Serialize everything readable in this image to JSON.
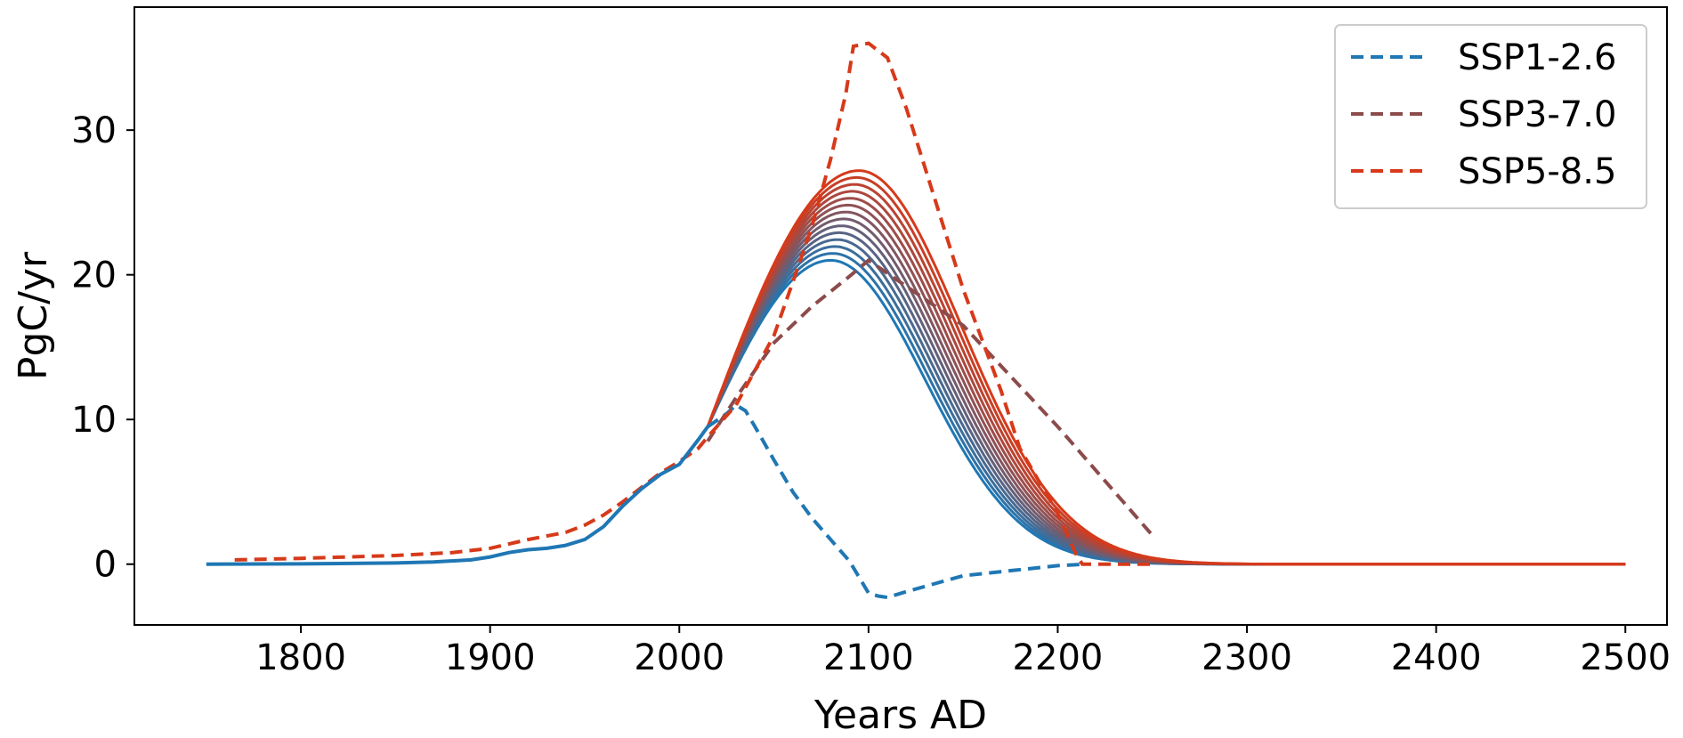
{
  "chart_data": {
    "type": "line",
    "title": "",
    "xlabel": "Years AD",
    "ylabel": "PgC/yr",
    "xlim": [
      1712,
      2522
    ],
    "ylim": [
      -4.2,
      38.5
    ],
    "xticks": [
      1800,
      1900,
      2000,
      2100,
      2200,
      2300,
      2400,
      2500
    ],
    "yticks": [
      0,
      10,
      20,
      30
    ],
    "grid": false,
    "legend_position": "top-right",
    "colors": {
      "ssp126": "#1f77b4",
      "ssp370": "#8c4b4b",
      "ssp585": "#d63a1a",
      "family_start": "#1f77b4",
      "family_end": "#d63a1a"
    },
    "series": [
      {
        "name": "SSP1-2.6",
        "style": "dashed",
        "x": [
          2015,
          2025,
          2030,
          2035,
          2040,
          2050,
          2060,
          2070,
          2080,
          2090,
          2100,
          2105,
          2110,
          2120,
          2150,
          2200,
          2215
        ],
        "y": [
          9.5,
          10.4,
          11.0,
          10.6,
          9.5,
          7.2,
          5.0,
          3.2,
          1.7,
          0.2,
          -2.0,
          -2.2,
          -2.3,
          -1.9,
          -0.8,
          -0.1,
          0.0
        ]
      },
      {
        "name": "SSP3-7.0",
        "style": "dashed",
        "x": [
          2015,
          2030,
          2050,
          2070,
          2090,
          2100,
          2150,
          2200,
          2250
        ],
        "y": [
          8.5,
          11.5,
          15.3,
          17.8,
          19.9,
          21.0,
          16.5,
          9.5,
          2.0
        ]
      },
      {
        "name": "SSP5-8.5",
        "style": "dashed",
        "x": [
          1765,
          1800,
          1850,
          1880,
          1900,
          1920,
          1940,
          1950,
          1960,
          1970,
          1980,
          1990,
          2000,
          2010,
          2015,
          2030,
          2050,
          2060,
          2070,
          2080,
          2088,
          2092,
          2100,
          2110,
          2120,
          2150,
          2170,
          2180,
          2200,
          2210,
          2213,
          2250
        ],
        "y": [
          0.3,
          0.4,
          0.6,
          0.8,
          1.1,
          1.7,
          2.2,
          2.7,
          3.4,
          4.3,
          5.3,
          6.3,
          7.1,
          8.0,
          8.8,
          11.0,
          15.8,
          19.5,
          23.3,
          28.0,
          32.5,
          35.8,
          36.0,
          35.0,
          31.5,
          19.0,
          12.0,
          8.0,
          3.5,
          0.6,
          0.0,
          0.0
        ]
      }
    ],
    "historical": {
      "x": [
        1750,
        1800,
        1850,
        1870,
        1890,
        1900,
        1910,
        1920,
        1930,
        1940,
        1950,
        1960,
        1970,
        1980,
        1990,
        2000,
        2010,
        2015
      ],
      "y": [
        0.0,
        0.02,
        0.08,
        0.15,
        0.3,
        0.5,
        0.8,
        1.0,
        1.1,
        1.3,
        1.7,
        2.6,
        4.0,
        5.2,
        6.2,
        6.9,
        8.6,
        9.5
      ]
    },
    "scenario_family": {
      "count": 14,
      "x_range": [
        2015,
        2500
      ],
      "start_value": 9.5,
      "peak_values": [
        21.0,
        27.2
      ],
      "peak_years": [
        2080,
        2095
      ],
      "legend": false
    }
  }
}
